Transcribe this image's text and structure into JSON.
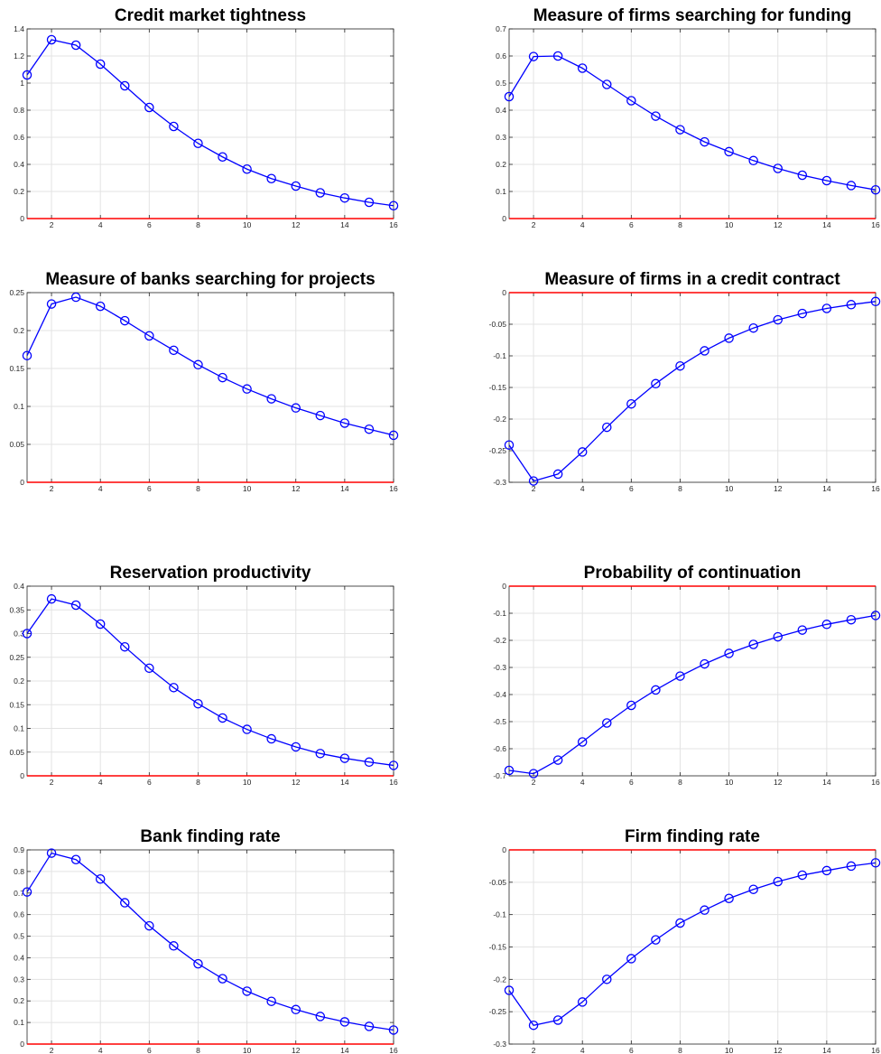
{
  "chart_data": [
    {
      "type": "line",
      "title": "Credit market tightness",
      "x": [
        1,
        2,
        3,
        4,
        5,
        6,
        7,
        8,
        9,
        10,
        11,
        12,
        13,
        14,
        15,
        16
      ],
      "xticks": [
        2,
        4,
        6,
        8,
        10,
        12,
        14,
        16
      ],
      "xlim": [
        1,
        16
      ],
      "ylim": [
        0,
        1.4
      ],
      "yticks": [
        0,
        0.2,
        0.4,
        0.6,
        0.8,
        1,
        1.2,
        1.4
      ],
      "ytick_labels": [
        "0",
        "0.2",
        "0.4",
        "0.6",
        "0.8",
        "1",
        "1.2",
        "1.4"
      ],
      "grid": true,
      "series": [
        {
          "values": [
            1.06,
            1.32,
            1.28,
            1.14,
            0.98,
            0.82,
            0.68,
            0.555,
            0.455,
            0.365,
            0.295,
            0.24,
            0.19,
            0.152,
            0.12,
            0.095
          ],
          "color": "#0000ff",
          "marker": "circle"
        }
      ],
      "reference_line": {
        "y": 0,
        "color": "#ff0000"
      }
    },
    {
      "type": "line",
      "title": "Measure of firms searching for funding",
      "x": [
        1,
        2,
        3,
        4,
        5,
        6,
        7,
        8,
        9,
        10,
        11,
        12,
        13,
        14,
        15,
        16
      ],
      "xticks": [
        2,
        4,
        6,
        8,
        10,
        12,
        14,
        16
      ],
      "xlim": [
        1,
        16
      ],
      "ylim": [
        0,
        0.7
      ],
      "yticks": [
        0,
        0.1,
        0.2,
        0.3,
        0.4,
        0.5,
        0.6,
        0.7
      ],
      "ytick_labels": [
        "0",
        "0.1",
        "0.2",
        "0.3",
        "0.4",
        "0.5",
        "0.6",
        "0.7"
      ],
      "grid": true,
      "series": [
        {
          "values": [
            0.45,
            0.598,
            0.6,
            0.555,
            0.495,
            0.435,
            0.378,
            0.328,
            0.283,
            0.247,
            0.214,
            0.185,
            0.16,
            0.14,
            0.122,
            0.106
          ],
          "color": "#0000ff",
          "marker": "circle"
        }
      ],
      "reference_line": {
        "y": 0,
        "color": "#ff0000"
      }
    },
    {
      "type": "line",
      "title": "Measure of banks searching for projects",
      "x": [
        1,
        2,
        3,
        4,
        5,
        6,
        7,
        8,
        9,
        10,
        11,
        12,
        13,
        14,
        15,
        16
      ],
      "xticks": [
        2,
        4,
        6,
        8,
        10,
        12,
        14,
        16
      ],
      "xlim": [
        1,
        16
      ],
      "ylim": [
        0,
        0.25
      ],
      "yticks": [
        0,
        0.05,
        0.1,
        0.15,
        0.2,
        0.25
      ],
      "ytick_labels": [
        "0",
        "0.05",
        "0.1",
        "0.15",
        "0.2",
        "0.25"
      ],
      "grid": true,
      "series": [
        {
          "values": [
            0.167,
            0.235,
            0.244,
            0.232,
            0.213,
            0.193,
            0.174,
            0.155,
            0.138,
            0.123,
            0.11,
            0.098,
            0.088,
            0.078,
            0.07,
            0.062
          ],
          "color": "#0000ff",
          "marker": "circle"
        }
      ],
      "reference_line": {
        "y": 0,
        "color": "#ff0000"
      }
    },
    {
      "type": "line",
      "title": "Measure of firms in a credit contract",
      "x": [
        1,
        2,
        3,
        4,
        5,
        6,
        7,
        8,
        9,
        10,
        11,
        12,
        13,
        14,
        15,
        16
      ],
      "xticks": [
        2,
        4,
        6,
        8,
        10,
        12,
        14,
        16
      ],
      "xlim": [
        1,
        16
      ],
      "ylim": [
        -0.3,
        0
      ],
      "yticks": [
        -0.3,
        -0.25,
        -0.2,
        -0.15,
        -0.1,
        -0.05,
        0
      ],
      "ytick_labels": [
        "-0.3",
        "-0.25",
        "-0.2",
        "-0.15",
        "-0.1",
        "-0.05",
        "0"
      ],
      "grid": true,
      "series": [
        {
          "values": [
            -0.241,
            -0.298,
            -0.287,
            -0.252,
            -0.213,
            -0.176,
            -0.144,
            -0.116,
            -0.092,
            -0.072,
            -0.056,
            -0.043,
            -0.033,
            -0.025,
            -0.019,
            -0.014
          ],
          "color": "#0000ff",
          "marker": "circle"
        }
      ],
      "reference_line": {
        "y": 0,
        "color": "#ff0000"
      }
    },
    {
      "type": "line",
      "title": "Reservation productivity",
      "x": [
        1,
        2,
        3,
        4,
        5,
        6,
        7,
        8,
        9,
        10,
        11,
        12,
        13,
        14,
        15,
        16
      ],
      "xticks": [
        2,
        4,
        6,
        8,
        10,
        12,
        14,
        16
      ],
      "xlim": [
        1,
        16
      ],
      "ylim": [
        0,
        0.4
      ],
      "yticks": [
        0,
        0.05,
        0.1,
        0.15,
        0.2,
        0.25,
        0.3,
        0.35,
        0.4
      ],
      "ytick_labels": [
        "0",
        "0.05",
        "0.1",
        "0.15",
        "0.2",
        "0.25",
        "0.3",
        "0.35",
        "0.4"
      ],
      "grid": true,
      "series": [
        {
          "values": [
            0.3,
            0.373,
            0.36,
            0.32,
            0.272,
            0.227,
            0.186,
            0.152,
            0.122,
            0.098,
            0.078,
            0.061,
            0.047,
            0.037,
            0.029,
            0.022
          ],
          "color": "#0000ff",
          "marker": "circle"
        }
      ],
      "reference_line": {
        "y": 0,
        "color": "#ff0000"
      }
    },
    {
      "type": "line",
      "title": "Probability of continuation",
      "x": [
        1,
        2,
        3,
        4,
        5,
        6,
        7,
        8,
        9,
        10,
        11,
        12,
        13,
        14,
        15,
        16
      ],
      "xticks": [
        2,
        4,
        6,
        8,
        10,
        12,
        14,
        16
      ],
      "xlim": [
        1,
        16
      ],
      "ylim": [
        -0.7,
        0
      ],
      "yticks": [
        -0.7,
        -0.6,
        -0.5,
        -0.4,
        -0.3,
        -0.2,
        -0.1,
        0
      ],
      "ytick_labels": [
        "-0.7",
        "-0.6",
        "-0.5",
        "-0.4",
        "-0.3",
        "-0.2",
        "-0.1",
        "0"
      ],
      "grid": true,
      "series": [
        {
          "values": [
            -0.68,
            -0.692,
            -0.642,
            -0.575,
            -0.505,
            -0.44,
            -0.383,
            -0.332,
            -0.287,
            -0.248,
            -0.215,
            -0.187,
            -0.162,
            -0.141,
            -0.124,
            -0.108
          ],
          "color": "#0000ff",
          "marker": "circle"
        }
      ],
      "reference_line": {
        "y": 0,
        "color": "#ff0000"
      }
    },
    {
      "type": "line",
      "title": "Bank finding rate",
      "x": [
        1,
        2,
        3,
        4,
        5,
        6,
        7,
        8,
        9,
        10,
        11,
        12,
        13,
        14,
        15,
        16
      ],
      "xticks": [
        2,
        4,
        6,
        8,
        10,
        12,
        14,
        16
      ],
      "xlim": [
        1,
        16
      ],
      "ylim": [
        0,
        0.9
      ],
      "yticks": [
        0,
        0.1,
        0.2,
        0.3,
        0.4,
        0.5,
        0.6,
        0.7,
        0.8,
        0.9
      ],
      "ytick_labels": [
        "0",
        "0.1",
        "0.2",
        "0.3",
        "0.4",
        "0.5",
        "0.6",
        "0.7",
        "0.8",
        "0.9"
      ],
      "grid": true,
      "series": [
        {
          "values": [
            0.705,
            0.885,
            0.855,
            0.765,
            0.655,
            0.548,
            0.455,
            0.372,
            0.303,
            0.245,
            0.198,
            0.16,
            0.128,
            0.103,
            0.082,
            0.065
          ],
          "color": "#0000ff",
          "marker": "circle"
        }
      ],
      "reference_line": {
        "y": 0,
        "color": "#ff0000"
      }
    },
    {
      "type": "line",
      "title": "Firm finding rate",
      "x": [
        1,
        2,
        3,
        4,
        5,
        6,
        7,
        8,
        9,
        10,
        11,
        12,
        13,
        14,
        15,
        16
      ],
      "xticks": [
        2,
        4,
        6,
        8,
        10,
        12,
        14,
        16
      ],
      "xlim": [
        1,
        16
      ],
      "ylim": [
        -0.3,
        0
      ],
      "yticks": [
        -0.3,
        -0.25,
        -0.2,
        -0.15,
        -0.1,
        -0.05,
        0
      ],
      "ytick_labels": [
        "-0.3",
        "-0.25",
        "-0.2",
        "-0.15",
        "-0.1",
        "-0.05",
        "0"
      ],
      "grid": true,
      "series": [
        {
          "values": [
            -0.217,
            -0.271,
            -0.263,
            -0.235,
            -0.2,
            -0.168,
            -0.139,
            -0.113,
            -0.093,
            -0.075,
            -0.061,
            -0.049,
            -0.039,
            -0.032,
            -0.025,
            -0.02
          ],
          "color": "#0000ff",
          "marker": "circle"
        }
      ],
      "reference_line": {
        "y": 0,
        "color": "#ff0000"
      }
    }
  ]
}
